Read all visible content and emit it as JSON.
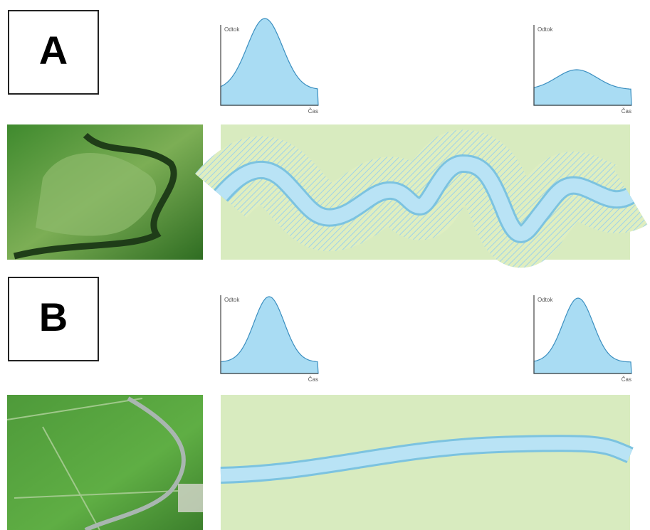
{
  "panels": [
    {
      "label": "A",
      "hydrographs": [
        {
          "y_label": "Odtok",
          "x_label": "Čas"
        },
        {
          "y_label": "Odtok",
          "x_label": "Čas"
        }
      ]
    },
    {
      "label": "B",
      "hydrographs": [
        {
          "y_label": "Odtok",
          "x_label": "Čas"
        },
        {
          "y_label": "Odtok",
          "x_label": "Čas"
        }
      ]
    }
  ]
}
